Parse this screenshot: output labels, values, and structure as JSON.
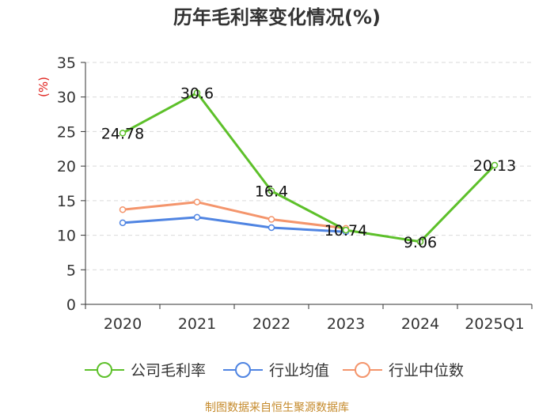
{
  "chart_data": {
    "type": "line",
    "title": "历年毛利率变化情况(%)",
    "ylabel": "(%)",
    "xlabel": "",
    "categories": [
      "2020",
      "2021",
      "2022",
      "2023",
      "2024",
      "2025Q1"
    ],
    "ylim": [
      0,
      35
    ],
    "yticks": [
      "0",
      "5",
      "10",
      "15",
      "20",
      "25",
      "30",
      "35"
    ],
    "grid": true,
    "legend_position": "bottom",
    "series": [
      {
        "name": "公司毛利率",
        "color": "#5dc02a",
        "values": [
          24.78,
          30.6,
          16.4,
          10.74,
          9.06,
          20.13
        ],
        "labels": [
          "24.78",
          "30.6",
          "16.4",
          "10.74",
          "9.06",
          "20.13"
        ]
      },
      {
        "name": "行业均值",
        "color": "#4f84e2",
        "values": [
          11.8,
          12.6,
          11.1,
          10.5,
          null,
          null
        ]
      },
      {
        "name": "行业中位数",
        "color": "#f4956c",
        "values": [
          13.7,
          14.8,
          12.3,
          11.0,
          null,
          null
        ]
      }
    ]
  },
  "source": "制图数据来自恒生聚源数据库"
}
